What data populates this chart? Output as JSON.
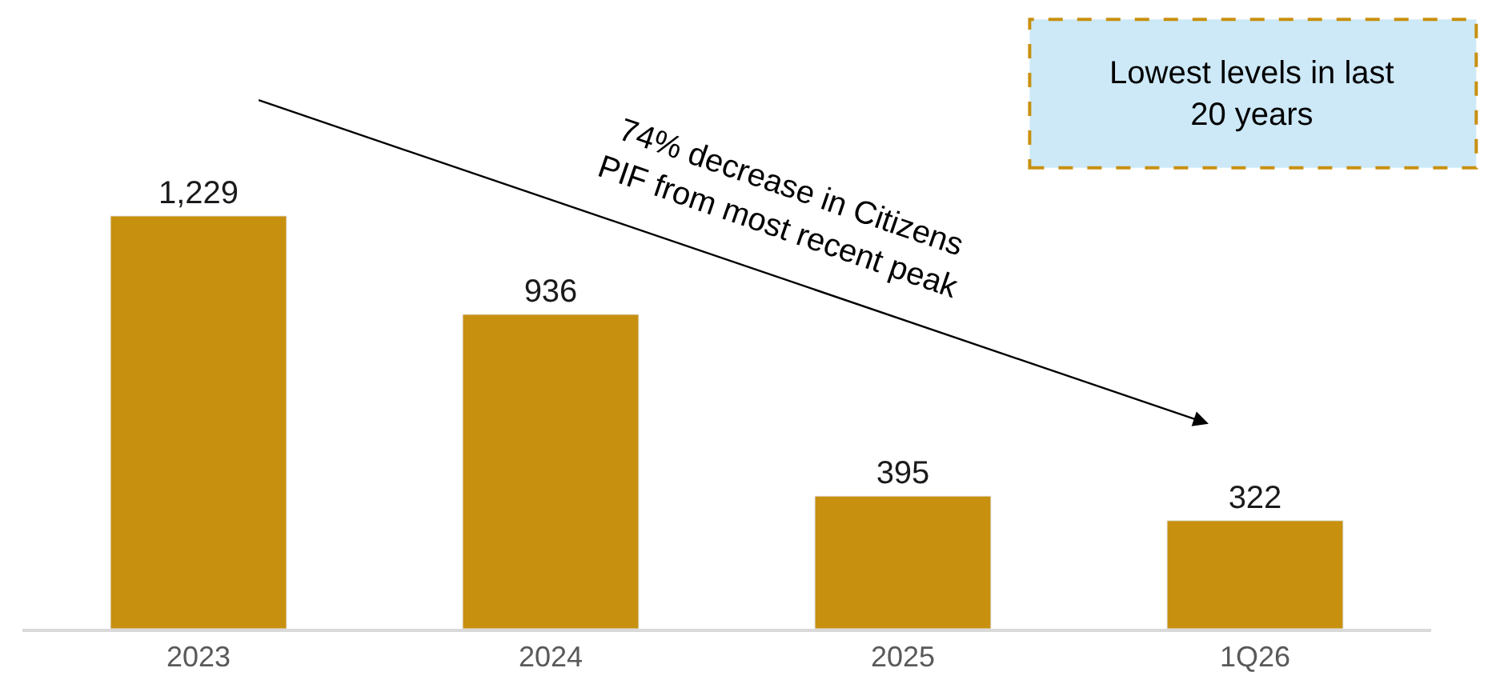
{
  "chart_data": {
    "type": "bar",
    "categories": [
      "2023",
      "2024",
      "2025",
      "1Q26"
    ],
    "series": [
      {
        "color": "#c8900f",
        "values": [
          1229,
          936,
          395,
          322
        ],
        "value_labels": [
          "1,229",
          "936",
          "395",
          "322"
        ]
      }
    ],
    "annotations": [
      "74% decrease in Citizens\nPIF from most recent peak",
      "Lowest levels in last\n20 years"
    ],
    "legend": false
  }
}
